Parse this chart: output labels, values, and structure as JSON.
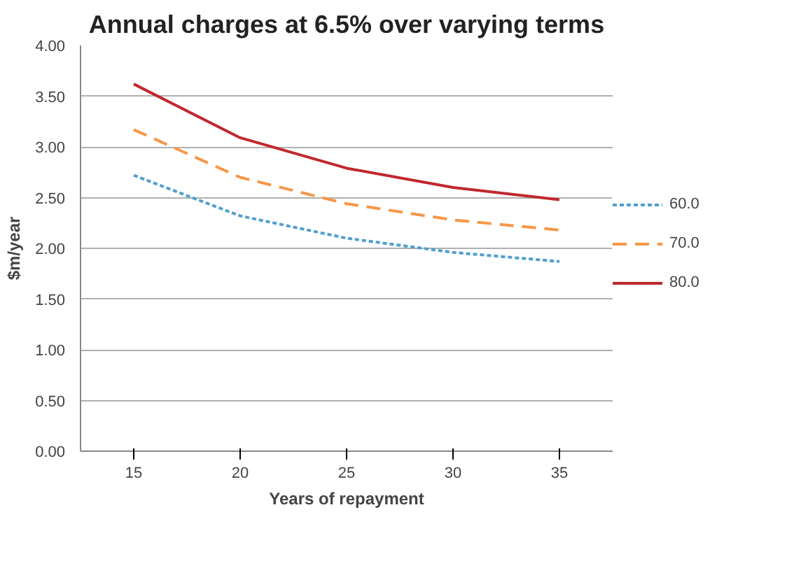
{
  "chart_data": {
    "type": "line",
    "title": "Annual charges at 6.5% over varying terms",
    "xlabel": "Years of repayment",
    "ylabel": "$m/year",
    "categories": [
      "15",
      "20",
      "25",
      "30",
      "35"
    ],
    "series": [
      {
        "name": "60.0",
        "color": "#4f9fd0",
        "line_style": "dotted",
        "values": [
          2.72,
          2.32,
          2.1,
          1.96,
          1.87
        ]
      },
      {
        "name": "70.0",
        "color": "#f79646",
        "line_style": "dashed",
        "values": [
          3.17,
          2.7,
          2.44,
          2.28,
          2.18
        ]
      },
      {
        "name": "80.0",
        "color": "#c0282d",
        "line_style": "solid",
        "values": [
          3.62,
          3.09,
          2.79,
          2.6,
          2.48
        ]
      }
    ],
    "ylim": [
      0,
      4
    ],
    "yticks": [
      {
        "value": 0,
        "label": "0.00"
      },
      {
        "value": 0.5,
        "label": "0.50"
      },
      {
        "value": 1,
        "label": "1.00"
      },
      {
        "value": 1.5,
        "label": "1.50"
      },
      {
        "value": 2,
        "label": "2.00"
      },
      {
        "value": 2.5,
        "label": "2.50"
      },
      {
        "value": 3,
        "label": "3.00"
      },
      {
        "value": 3.5,
        "label": "3.50"
      },
      {
        "value": 4,
        "label": "4.00"
      }
    ],
    "grid": "y",
    "legend": "right"
  }
}
